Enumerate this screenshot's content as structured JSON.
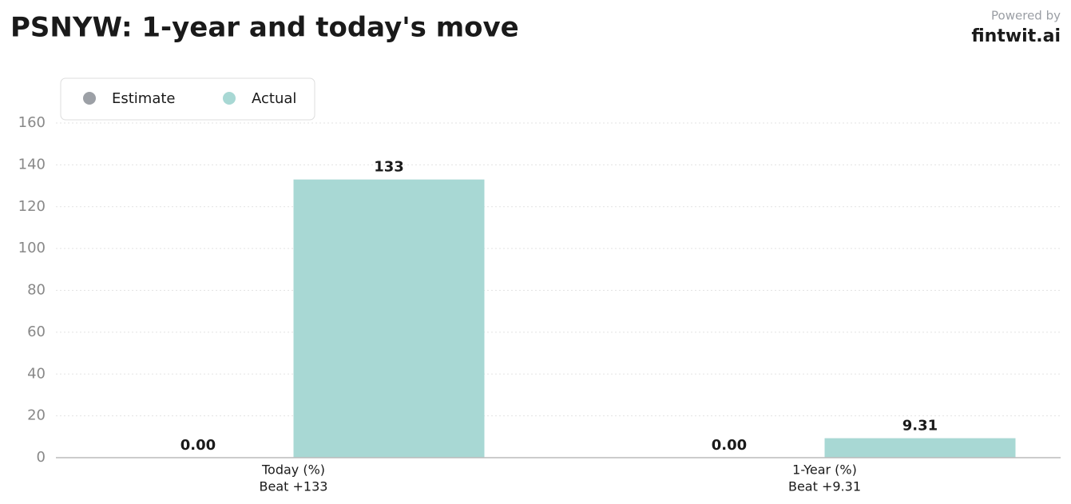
{
  "chart_data": {
    "type": "bar",
    "title": "PSNYW: 1-year and today's move",
    "branding": {
      "label": "Powered by",
      "name": "fintwit.ai"
    },
    "categories": [
      "Today (%)",
      "1-Year (%)"
    ],
    "category_notes": [
      "Beat +133",
      "Beat +9.31"
    ],
    "series": [
      {
        "name": "Estimate",
        "color": "#9ca0a6",
        "values": [
          0,
          0
        ],
        "value_labels": [
          "0.00",
          "0.00"
        ]
      },
      {
        "name": "Actual",
        "color": "#a8d8d4",
        "values": [
          133,
          9.31
        ],
        "value_labels": [
          "133",
          "9.31"
        ]
      }
    ],
    "ylim": [
      0,
      160
    ],
    "yticks": [
      0,
      20,
      40,
      60,
      80,
      100,
      120,
      140,
      160
    ],
    "grid": true,
    "legend": "top-left"
  }
}
